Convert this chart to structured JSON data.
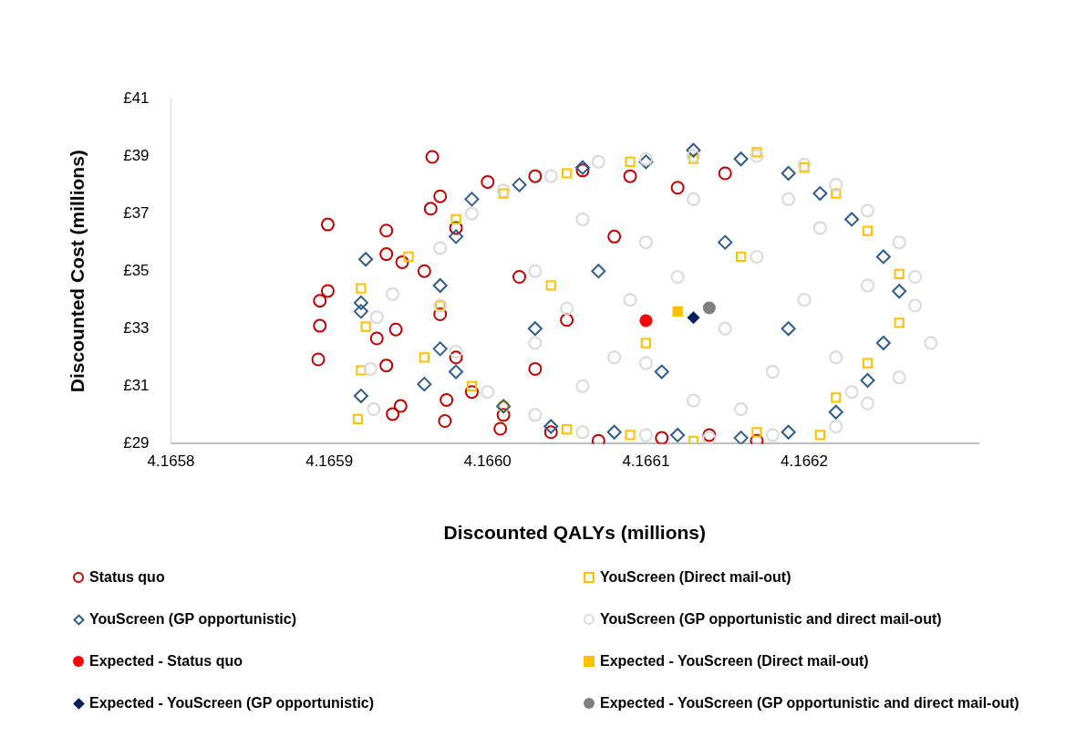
{
  "chart_data": {
    "type": "scatter",
    "xlabel": "Discounted QALYs (millions)",
    "ylabel": "Discounted Cost (millions)",
    "xlim": [
      4.1658,
      4.16631
    ],
    "xticks": [
      {
        "value": 4.1658,
        "label": "4.1658"
      },
      {
        "value": 4.1659,
        "label": "4.1659"
      },
      {
        "value": 4.166,
        "label": "4.1660"
      },
      {
        "value": 4.1661,
        "label": "4.1661"
      },
      {
        "value": 4.1662,
        "label": "4.1662"
      }
    ],
    "ylim": [
      29,
      41
    ],
    "yticks": [
      {
        "value": 29,
        "label": "£29"
      },
      {
        "value": 31,
        "label": "£31"
      },
      {
        "value": 33,
        "label": "£33"
      },
      {
        "value": 35,
        "label": "£35"
      },
      {
        "value": 37,
        "label": "£37"
      },
      {
        "value": 39,
        "label": "£39"
      },
      {
        "value": 41,
        "label": "£41"
      }
    ],
    "grid": false,
    "legend": "bottom",
    "series": [
      {
        "name": "Status quo",
        "color": "#c00000",
        "marker": "circle",
        "x": [
          4.165899,
          4.165965,
          4.165964,
          4.165936,
          4.165936,
          4.165946,
          4.165899,
          4.165894,
          4.165894,
          4.165893,
          4.16593,
          4.165942,
          4.165936,
          4.165945,
          4.16594,
          4.165973,
          4.165974,
          4.166008,
          4.16597,
          4.166,
          4.16603,
          4.16606,
          4.16609,
          4.16598,
          4.16596,
          4.16597,
          4.16598,
          4.16599,
          4.16601,
          4.16604,
          4.16607,
          4.16611,
          4.16614,
          4.16617,
          4.16605,
          4.16602,
          4.16603,
          4.16608,
          4.16612,
          4.16615
        ],
        "values": [
          36.62,
          38.97,
          37.17,
          36.41,
          35.59,
          35.31,
          34.31,
          33.97,
          33.1,
          31.93,
          32.66,
          32.97,
          31.72,
          30.31,
          30.03,
          29.79,
          30.52,
          29.52,
          37.6,
          38.1,
          38.3,
          38.5,
          38.3,
          36.5,
          35,
          33.5,
          32,
          30.8,
          30,
          29.4,
          29.1,
          29.2,
          29.3,
          29.1,
          33.3,
          34.8,
          31.6,
          36.2,
          37.9,
          38.4
        ]
      },
      {
        "name": "YouScreen (Direct mail-out)",
        "color": "#ffc000",
        "marker": "square",
        "x": [
          4.16592,
          4.165923,
          4.16592,
          4.165918,
          4.16595,
          4.16596,
          4.16598,
          4.16601,
          4.16605,
          4.16609,
          4.16613,
          4.16617,
          4.1662,
          4.16622,
          4.16624,
          4.16626,
          4.16626,
          4.16624,
          4.16622,
          4.16621,
          4.16617,
          4.16613,
          4.16609,
          4.16605,
          4.16601,
          4.16599,
          4.16597,
          4.16604,
          4.1661,
          4.16616
        ],
        "values": [
          34.4,
          33.07,
          31.55,
          29.86,
          35.5,
          32,
          36.8,
          37.7,
          38.4,
          38.8,
          38.9,
          39.13,
          38.6,
          37.7,
          36.4,
          34.9,
          33.2,
          31.8,
          30.6,
          29.3,
          29.4,
          29.1,
          29.3,
          29.5,
          30.3,
          31,
          33.8,
          34.5,
          32.5,
          35.5
        ]
      },
      {
        "name": "YouScreen (GP opportunistic)",
        "color": "#2e5d8e",
        "marker": "diamond",
        "x": [
          4.165923,
          4.16592,
          4.16592,
          4.16592,
          4.16596,
          4.16597,
          4.16599,
          4.16602,
          4.16606,
          4.1661,
          4.16613,
          4.16616,
          4.16619,
          4.16621,
          4.16623,
          4.16625,
          4.16626,
          4.16625,
          4.16624,
          4.16622,
          4.16619,
          4.16616,
          4.16612,
          4.16608,
          4.16604,
          4.16601,
          4.16598,
          4.16597,
          4.16598,
          4.16603,
          4.16607,
          4.16611,
          4.16615,
          4.16619
        ],
        "values": [
          35.41,
          33.9,
          33.6,
          30.66,
          31.07,
          32.3,
          37.5,
          38,
          38.6,
          38.8,
          39.2,
          38.9,
          38.4,
          37.7,
          36.8,
          35.5,
          34.3,
          32.5,
          31.2,
          30.1,
          29.4,
          29.2,
          29.3,
          29.4,
          29.6,
          30.3,
          31.5,
          34.5,
          36.2,
          33,
          35,
          31.5,
          36,
          33
        ]
      },
      {
        "name": "YouScreen (GP opportunistic and direct mail-out)",
        "color": "#d9d9d9",
        "marker": "circle",
        "x": [
          4.165926,
          4.165928,
          4.16593,
          4.16594,
          4.16597,
          4.16599,
          4.16601,
          4.16604,
          4.16607,
          4.1661,
          4.16613,
          4.16617,
          4.1662,
          4.16622,
          4.16624,
          4.16626,
          4.16627,
          4.16627,
          4.16628,
          4.16626,
          4.16624,
          4.16622,
          4.16618,
          4.16614,
          4.1661,
          4.16606,
          4.16603,
          4.166,
          4.16598,
          4.16597,
          4.16603,
          4.16603,
          4.16606,
          4.16606,
          4.16609,
          4.1661,
          4.1661,
          4.16613,
          4.16613,
          4.16615,
          4.16617,
          4.16618,
          4.1662,
          4.16621,
          4.16622,
          4.16624,
          4.16605,
          4.16608,
          4.16612,
          4.16619,
          4.16616,
          4.16623
        ],
        "values": [
          31.6,
          30.2,
          33.4,
          34.2,
          35.8,
          37,
          37.8,
          38.3,
          38.8,
          38.9,
          39,
          39,
          38.7,
          38,
          37.1,
          36,
          34.8,
          33.8,
          32.5,
          31.3,
          30.4,
          29.6,
          29.3,
          29.2,
          29.3,
          29.4,
          30,
          30.8,
          32.2,
          33.8,
          35,
          32.5,
          36.8,
          31,
          34,
          36,
          31.8,
          37.5,
          30.5,
          33,
          35.5,
          31.5,
          34,
          36.5,
          32,
          34.5,
          33.7,
          32,
          34.8,
          37.5,
          30.2,
          30.8
        ]
      },
      {
        "name": "Expected - Status quo",
        "color": "#ff0000",
        "marker": "circle",
        "x": [
          4.1661
        ],
        "values": [
          33.28
        ]
      },
      {
        "name": "Expected - YouScreen (Direct mail-out)",
        "color": "#ffc000",
        "marker": "square",
        "x": [
          4.16612
        ],
        "values": [
          33.6
        ]
      },
      {
        "name": "Expected - YouScreen (GP opportunistic)",
        "color": "#002060",
        "marker": "diamond",
        "x": [
          4.16613
        ],
        "values": [
          33.38
        ]
      },
      {
        "name": "Expected - YouScreen (GP opportunistic and direct mail-out)",
        "color": "#7f7f7f",
        "marker": "circle",
        "x": [
          4.16614
        ],
        "values": [
          33.72
        ]
      }
    ]
  }
}
